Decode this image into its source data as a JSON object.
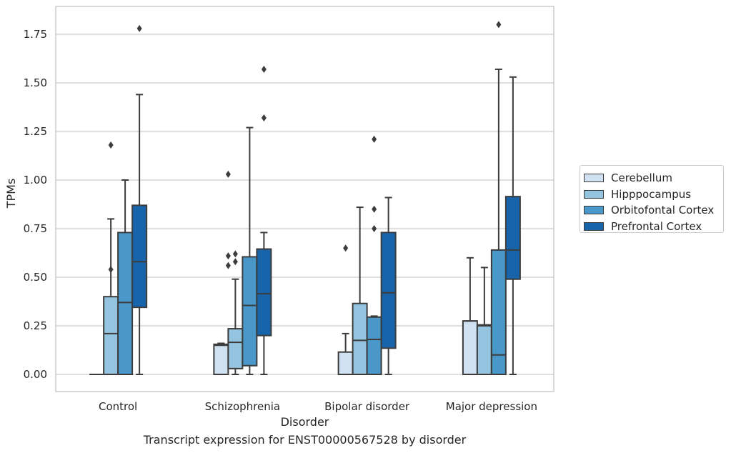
{
  "chart_data": {
    "type": "box",
    "title": "Transcript expression for ENST00000567528 by disorder",
    "xlabel": "Disorder",
    "ylabel": "TPMs",
    "ylim": [
      -0.088,
      1.89
    ],
    "yticks": [
      "0.00",
      "0.25",
      "0.50",
      "0.75",
      "1.00",
      "1.25",
      "1.50",
      "1.75"
    ],
    "grid": "horizontal",
    "legend_position": "right",
    "categories": [
      "Control",
      "Schizophrenia",
      "Bipolar disorder",
      "Major depression"
    ],
    "series": [
      {
        "name": "Cerebellum",
        "color": "#d0e1f2",
        "boxes": [
          {
            "whisker_low": 0,
            "q1": 0,
            "median": 0,
            "q3": 0,
            "whisker_high": 0,
            "outliers": []
          },
          {
            "whisker_low": 0,
            "q1": 0,
            "median": 0.15,
            "q3": 0.155,
            "whisker_high": 0.16,
            "outliers": []
          },
          {
            "whisker_low": 0,
            "q1": 0,
            "median": 0,
            "q3": 0.115,
            "whisker_high": 0.21,
            "outliers": [
              0.65
            ]
          },
          {
            "whisker_low": 0,
            "q1": 0,
            "median": 0.275,
            "q3": 0.275,
            "whisker_high": 0.6,
            "outliers": []
          }
        ]
      },
      {
        "name": "Hipppocampus",
        "color": "#94c4df",
        "boxes": [
          {
            "whisker_low": 0,
            "q1": 0,
            "median": 0.21,
            "q3": 0.4,
            "whisker_high": 0.8,
            "outliers": [
              0.54,
              1.18
            ]
          },
          {
            "whisker_low": 0,
            "q1": 0.03,
            "median": 0.165,
            "q3": 0.235,
            "whisker_high": 0.49,
            "outliers": [
              0.58,
              0.62
            ]
          },
          {
            "whisker_low": 0,
            "q1": 0,
            "median": 0.175,
            "q3": 0.365,
            "whisker_high": 0.86,
            "outliers": []
          },
          {
            "whisker_low": 0,
            "q1": 0,
            "median": 0.25,
            "q3": 0.255,
            "whisker_high": 0.55,
            "outliers": []
          }
        ]
      },
      {
        "name": "Orbitofontal Cortex",
        "color": "#4a98c9",
        "boxes": [
          {
            "whisker_low": 0,
            "q1": 0,
            "median": 0.37,
            "q3": 0.73,
            "whisker_high": 1.0,
            "outliers": []
          },
          {
            "whisker_low": 0,
            "q1": 0.045,
            "median": 0.355,
            "q3": 0.605,
            "whisker_high": 1.27,
            "outliers": []
          },
          {
            "whisker_low": 0,
            "q1": 0,
            "median": 0.18,
            "q3": 0.295,
            "whisker_high": 0.3,
            "outliers": [
              0.75,
              0.85,
              1.21
            ]
          },
          {
            "whisker_low": 0,
            "q1": 0,
            "median": 0.1,
            "q3": 0.64,
            "whisker_high": 1.57,
            "outliers": [
              1.8
            ]
          }
        ]
      },
      {
        "name": "Prefrontal Cortex",
        "color": "#1764ab",
        "boxes": [
          {
            "whisker_low": 0,
            "q1": 0.345,
            "median": 0.58,
            "q3": 0.87,
            "whisker_high": 1.44,
            "outliers": [
              1.78
            ]
          },
          {
            "whisker_low": 0,
            "q1": 0.2,
            "median": 0.415,
            "q3": 0.645,
            "whisker_high": 0.73,
            "outliers": [
              1.32,
              1.57
            ]
          },
          {
            "whisker_low": 0,
            "q1": 0.135,
            "median": 0.42,
            "q3": 0.73,
            "whisker_high": 0.91,
            "outliers": []
          },
          {
            "whisker_low": 0,
            "q1": 0.49,
            "median": 0.64,
            "q3": 0.915,
            "whisker_high": 1.53,
            "outliers": []
          }
        ]
      }
    ]
  },
  "extra_outliers": [
    {
      "category": 1,
      "series": 0,
      "values": [
        0.56,
        0.61,
        1.03
      ]
    }
  ]
}
